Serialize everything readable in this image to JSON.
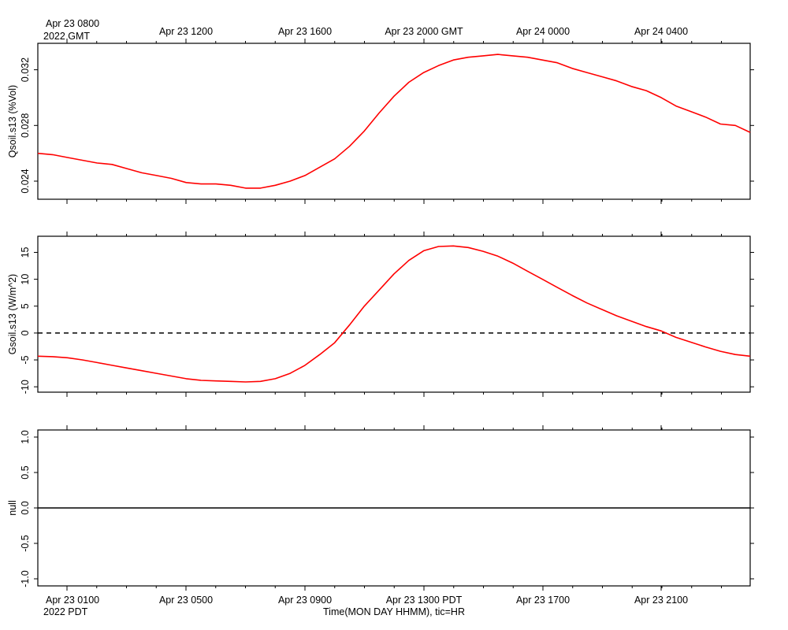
{
  "top_axis": {
    "first_label_line1": "Apr 23 0800",
    "first_label_line2": "2022 GMT",
    "labels": [
      "Apr 23 1200",
      "Apr 23 1600",
      "Apr 23 2000 GMT",
      "Apr 24 0000",
      "Apr 24 0400"
    ]
  },
  "bottom_axis": {
    "first_label_line1": "Apr 23 0100",
    "first_label_line2": "2022 PDT",
    "labels": [
      "Apr 23 0500",
      "Apr 23 0900",
      "Apr 23 1300 PDT",
      "Apr 23 1700",
      "Apr 23 2100"
    ],
    "title": "Time(MON DAY HHMM), tic=HR"
  },
  "colors": {
    "series": "#ff0000",
    "axis": "#000000",
    "zero_line": "#000000"
  },
  "chart_data": [
    {
      "type": "line",
      "ylabel": "Qsoil.s13 (%Vol)",
      "ylim": [
        0.0227,
        0.0339
      ],
      "yticks": [
        0.024,
        0.028,
        0.032
      ],
      "ytick_labels": [
        "0.024",
        "0.028",
        "0.032"
      ],
      "xlim_hours_pdt": [
        0.0,
        24.0
      ],
      "series": [
        {
          "x_hours_pdt": [
            0,
            0.5,
            1,
            1.5,
            2,
            2.5,
            3,
            3.5,
            4,
            4.5,
            5,
            5.5,
            6,
            6.5,
            7,
            7.5,
            8,
            8.5,
            9,
            9.5,
            10,
            10.5,
            11,
            11.5,
            12,
            12.5,
            13,
            13.5,
            14,
            14.5,
            15,
            15.5,
            16,
            16.5,
            17,
            17.5,
            18,
            18.5,
            19,
            19.5,
            20,
            20.5,
            21,
            21.5,
            22,
            22.5,
            23,
            23.5,
            24
          ],
          "values": [
            0.026,
            0.0259,
            0.0257,
            0.0255,
            0.0253,
            0.0252,
            0.0249,
            0.0246,
            0.0244,
            0.0242,
            0.0239,
            0.0238,
            0.0238,
            0.0237,
            0.0235,
            0.0235,
            0.0237,
            0.024,
            0.0244,
            0.025,
            0.0256,
            0.0265,
            0.0276,
            0.0289,
            0.0301,
            0.0311,
            0.0318,
            0.0323,
            0.0327,
            0.0329,
            0.033,
            0.0331,
            0.033,
            0.0329,
            0.0327,
            0.0325,
            0.0321,
            0.0318,
            0.0315,
            0.0312,
            0.0308,
            0.0305,
            0.03,
            0.0294,
            0.029,
            0.0286,
            0.0281,
            0.028,
            0.0275
          ]
        }
      ]
    },
    {
      "type": "line",
      "ylabel": "Gsoil.s13 (W/m^2)",
      "ylim": [
        -11,
        18
      ],
      "yticks": [
        -10,
        -5,
        0,
        5,
        10,
        15
      ],
      "ytick_labels": [
        "-10",
        "-5",
        "0",
        "5",
        "10",
        "15"
      ],
      "zero_line": "dashed",
      "xlim_hours_pdt": [
        0.0,
        24.0
      ],
      "series": [
        {
          "x_hours_pdt": [
            0,
            0.5,
            1,
            1.5,
            2,
            2.5,
            3,
            3.5,
            4,
            4.5,
            5,
            5.5,
            6,
            6.5,
            7,
            7.5,
            8,
            8.5,
            9,
            9.5,
            10,
            10.5,
            11,
            11.5,
            12,
            12.5,
            13,
            13.5,
            14,
            14.5,
            15,
            15.5,
            16,
            16.5,
            17,
            17.5,
            18,
            18.5,
            19,
            19.5,
            20,
            20.5,
            21,
            21.5,
            22,
            22.5,
            23,
            23.5,
            24
          ],
          "values": [
            -4.3,
            -4.4,
            -4.6,
            -5.0,
            -5.5,
            -6.0,
            -6.5,
            -7.0,
            -7.5,
            -8.0,
            -8.5,
            -8.8,
            -8.9,
            -9.0,
            -9.1,
            -9.0,
            -8.5,
            -7.5,
            -6.0,
            -4.0,
            -1.8,
            1.5,
            5.0,
            8.0,
            11.0,
            13.5,
            15.3,
            16.1,
            16.2,
            15.9,
            15.2,
            14.3,
            13.0,
            11.5,
            10.0,
            8.5,
            7.0,
            5.6,
            4.4,
            3.2,
            2.2,
            1.2,
            0.4,
            -0.8,
            -1.7,
            -2.6,
            -3.4,
            -4.0,
            -4.3
          ]
        }
      ]
    },
    {
      "type": "line",
      "ylabel": "null",
      "ylim": [
        -1.1,
        1.1
      ],
      "yticks": [
        -1.0,
        -0.5,
        0.0,
        0.5,
        1.0
      ],
      "ytick_labels": [
        "-1.0",
        "-0.5",
        "0.0",
        "0.5",
        "1.0"
      ],
      "xlim_hours_pdt": [
        0.0,
        24.0
      ],
      "series": [
        {
          "x_hours_pdt": [
            0,
            24
          ],
          "values": [
            0,
            0
          ]
        }
      ]
    }
  ]
}
